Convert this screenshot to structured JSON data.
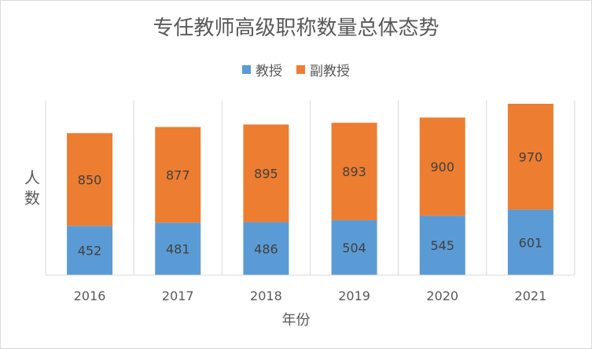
{
  "chart_data": {
    "type": "bar",
    "stacked": true,
    "title": "专任教师高级职称数量总体态势",
    "xlabel": "年份",
    "ylabel": "人数",
    "categories": [
      "2016",
      "2017",
      "2018",
      "2019",
      "2020",
      "2021"
    ],
    "series": [
      {
        "name": "教授",
        "color": "#5b9bd5",
        "values": [
          452,
          481,
          486,
          504,
          545,
          601
        ]
      },
      {
        "name": "副教授",
        "color": "#ed7d31",
        "values": [
          850,
          877,
          895,
          893,
          900,
          970
        ]
      }
    ],
    "ylim": [
      0,
      1600
    ],
    "legend_position": "top",
    "grid": "vertical"
  }
}
